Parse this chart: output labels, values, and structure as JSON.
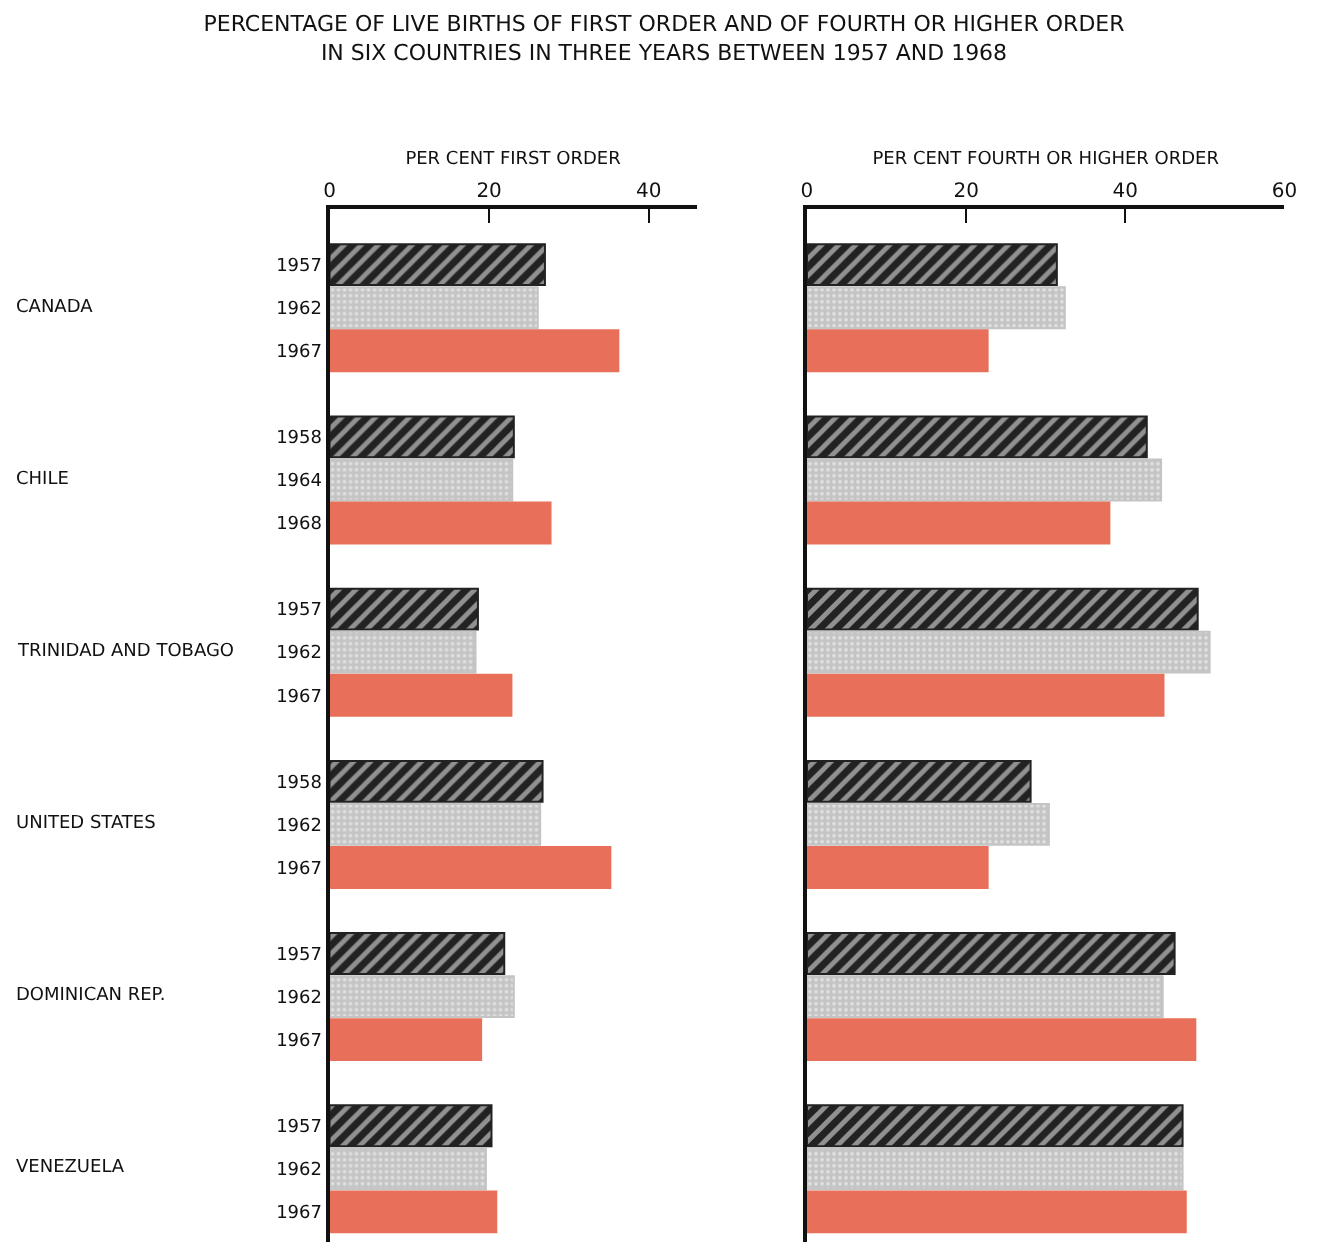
{
  "chart_data": [
    {
      "type": "bar",
      "orientation": "horizontal",
      "title": "PERCENTAGE OF LIVE BIRTHS OF FIRST ORDER AND OF FOURTH OR HIGHER ORDER\nIN SIX COUNTRIES IN THREE YEARS BETWEEN 1957 AND 1968",
      "xlabel": "PER CENT FIRST ORDER",
      "categories": [
        "1957",
        "1962",
        "1967",
        null,
        "1958",
        "1964",
        "1968",
        null,
        "1957",
        "1962",
        "1967",
        null,
        "1958",
        "1962",
        "1967",
        null,
        "1957",
        "1962",
        "1967",
        null,
        "1957",
        "1962",
        "1967"
      ],
      "series": [
        {
          "color": "#222222",
          "values": [
            27.0,
            null,
            null,
            null,
            23.1,
            null,
            null,
            null,
            18.6,
            null,
            null,
            null,
            26.7,
            null,
            null,
            null,
            21.9,
            null,
            null,
            null,
            20.3,
            null,
            null
          ]
        },
        {
          "color": "#c4c4c4",
          "values": [
            null,
            26.1,
            null,
            null,
            null,
            22.9,
            null,
            null,
            null,
            18.3,
            null,
            null,
            null,
            26.4,
            null,
            null,
            null,
            23.1,
            null,
            null,
            null,
            19.6,
            null
          ]
        },
        {
          "color": "#e8705a",
          "values": [
            null,
            null,
            36.2,
            null,
            null,
            null,
            27.7,
            null,
            null,
            null,
            22.8,
            null,
            null,
            null,
            35.2,
            null,
            null,
            null,
            19.0,
            null,
            null,
            null,
            20.9
          ]
        }
      ],
      "annotations": [
        "CANADA",
        "CHILE",
        "TRINIDAD AND TOBAGO",
        "UNITED STATES",
        "DOMINICAN REP.",
        "VENEZUELA"
      ],
      "xlim": [
        0,
        46
      ],
      "xticks": [
        0,
        20,
        40
      ]
    },
    {
      "type": "bar",
      "orientation": "horizontal",
      "xlabel": "PER CENT FOURTH OR HIGHER ORDER",
      "categories": [
        "1957",
        "1962",
        "1967",
        null,
        "1958",
        "1964",
        "1968",
        null,
        "1957",
        "1962",
        "1967",
        null,
        "1958",
        "1962",
        "1967",
        null,
        "1957",
        "1962",
        "1967",
        null,
        "1957",
        "1962",
        "1967"
      ],
      "series": [
        {
          "color": "#222222",
          "values": [
            31.4,
            null,
            null,
            null,
            42.7,
            null,
            null,
            null,
            49.1,
            null,
            null,
            null,
            28.1,
            null,
            null,
            null,
            46.2,
            null,
            null,
            null,
            47.2,
            null,
            null
          ]
        },
        {
          "color": "#c4c4c4",
          "values": [
            null,
            32.4,
            null,
            null,
            null,
            44.5,
            null,
            null,
            null,
            50.6,
            null,
            null,
            null,
            30.4,
            null,
            null,
            null,
            44.7,
            null,
            null,
            null,
            47.2,
            null
          ]
        },
        {
          "color": "#e8705a",
          "values": [
            null,
            null,
            22.7,
            null,
            null,
            null,
            38.0,
            null,
            null,
            null,
            44.8,
            null,
            null,
            null,
            22.7,
            null,
            null,
            null,
            48.8,
            null,
            null,
            null,
            47.6
          ]
        }
      ],
      "xlim": [
        0,
        60
      ],
      "xticks": [
        0,
        20,
        40,
        60
      ],
      "tick_labels": "x"
    }
  ]
}
